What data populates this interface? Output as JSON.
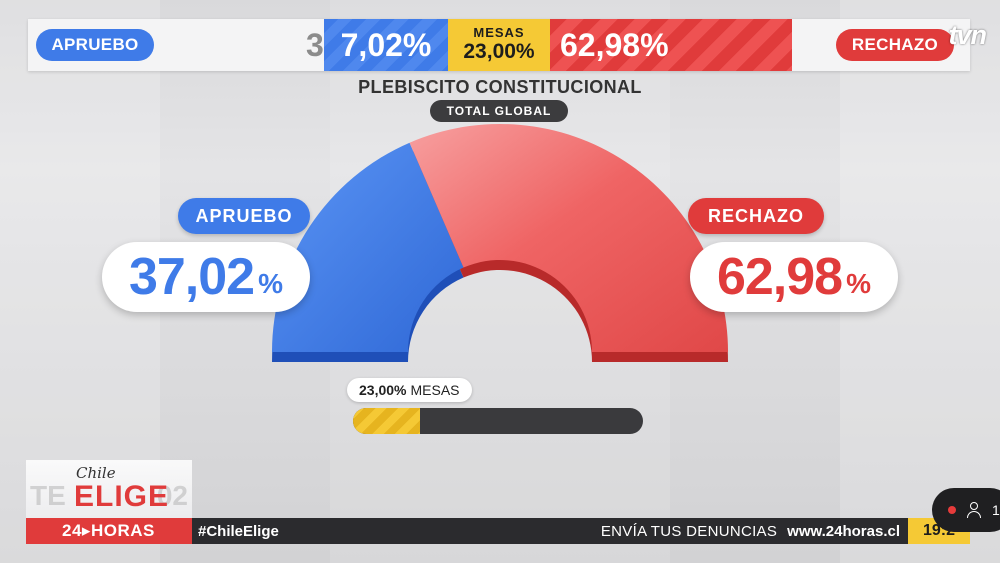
{
  "broadcaster": {
    "logo": "tvn"
  },
  "top_bar": {
    "apruebo_label": "APRUEBO",
    "rechazo_label": "RECHAZO",
    "apruebo_ghost_digit": "3",
    "apruebo_pct": "7,02%",
    "mesas_label": "MESAS",
    "mesas_value": "23,00%",
    "rechazo_pct": "62,98%"
  },
  "title": "PLEBISCITO CONSTITUCIONAL",
  "subtitle": "TOTAL GLOBAL",
  "results": {
    "apruebo": {
      "label": "APRUEBO",
      "value": "37,02",
      "unit": "%",
      "share": 37.02,
      "color": "#3f7be8"
    },
    "rechazo": {
      "label": "RECHAZO",
      "value": "62,98",
      "unit": "%",
      "share": 62.98,
      "color": "#e03b3b"
    }
  },
  "mesas_progress": {
    "value_text": "23,00%",
    "label": "MESAS",
    "fraction": 0.23
  },
  "lower_third": {
    "program_small": "Chile",
    "program_big": "ELIGE",
    "ghost_left": "TE",
    "ghost_right": "02",
    "news_brand": "24▸HORAS",
    "hashtag": "#ChileElige",
    "denuncias": "ENVÍA TUS DENUNCIAS",
    "website": "www.24horas.cl",
    "clock": "19:2"
  },
  "live_widget": {
    "viewers": "1"
  }
}
